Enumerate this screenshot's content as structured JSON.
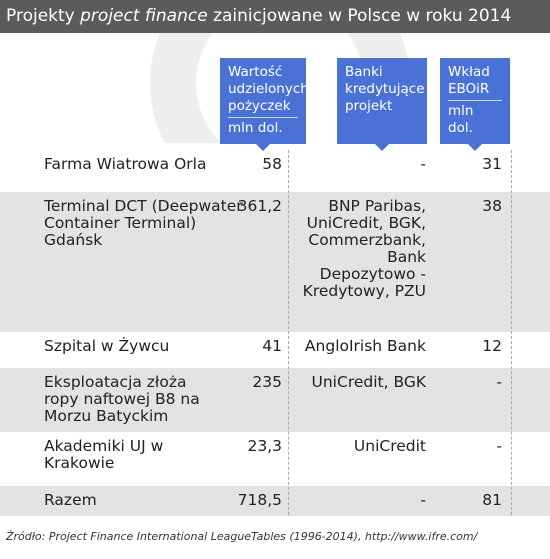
{
  "title": {
    "prefix": "Projekty ",
    "italic": "project finance",
    "suffix": " zainicjowane w Polsce w roku 2014"
  },
  "columns": [
    {
      "label": "Wartość udzielonych pożyczek",
      "unit": "mln dol."
    },
    {
      "label": "Banki kredytujące projekt",
      "unit": ""
    },
    {
      "label": "Wkład EBOiR",
      "unit": "mln dol."
    }
  ],
  "rows": [
    {
      "name": "Farma Wiatrowa Orla",
      "value": "58",
      "banks": "-",
      "ebrd": "31"
    },
    {
      "name": "Terminal DCT (Deepwater Container Terminal) Gdańsk",
      "value": "361,2",
      "banks": "BNP Paribas, UniCredit, BGK, Commerzbank, Bank Depozytowo -Kredytowy, PZU",
      "ebrd": "38"
    },
    {
      "name": "Szpital w Żywcu",
      "value": "41",
      "banks": "AngloIrish Bank",
      "ebrd": "12"
    },
    {
      "name": "Eksploatacja złoża ropy naftowej B8 na Morzu Batyckim",
      "value": "235",
      "banks": "UniCredit, BGK",
      "ebrd": "-"
    },
    {
      "name": "Akademiki UJ w Krakowie",
      "value": "23,3",
      "banks": "UniCredit",
      "ebrd": "-"
    },
    {
      "name": "Razem",
      "value": "718,5",
      "banks": "-",
      "ebrd": "81"
    }
  ],
  "source": "Źródło: Project Finance International LeagueTables (1996-2014), http://www.ifre.com/"
}
